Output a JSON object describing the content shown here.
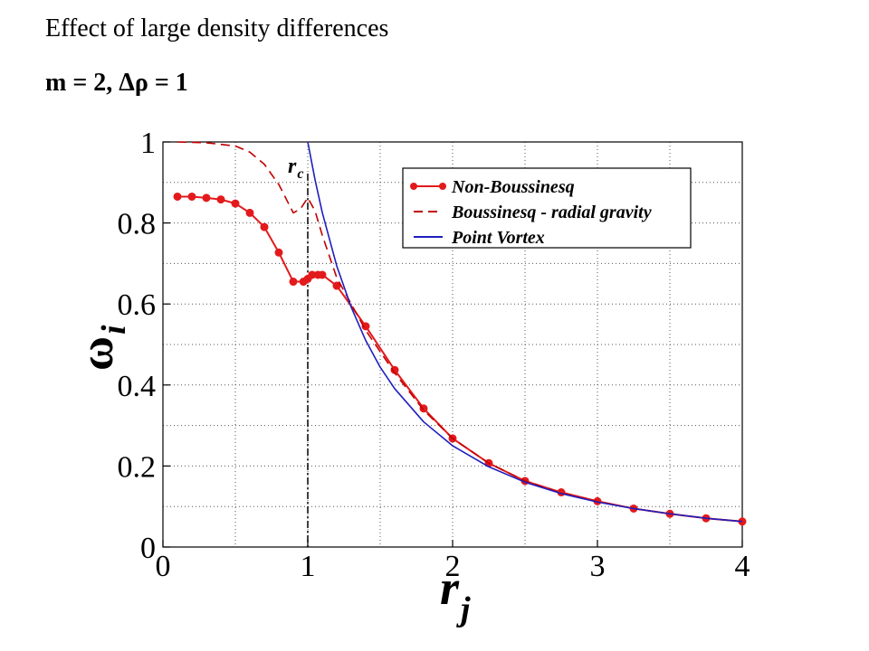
{
  "heading": "Effect of large density differences",
  "subheading": "m = 2, Δρ = 1",
  "chart_data": {
    "type": "line",
    "xlabel_main": "r",
    "xlabel_sub": "j",
    "ylabel_main": "ω",
    "ylabel_sub": "i",
    "xlim": [
      0,
      4
    ],
    "ylim": [
      0,
      1
    ],
    "xticks": [
      0,
      1,
      2,
      3,
      4
    ],
    "yticks": [
      0,
      0.2,
      0.4,
      0.6,
      0.8,
      1
    ],
    "xtick_labels": [
      "0",
      "1",
      "2",
      "3",
      "4"
    ],
    "ytick_labels": [
      "0",
      "0.2",
      "0.4",
      "0.6",
      "0.8",
      "1"
    ],
    "grid": true,
    "legend_position": "top-right",
    "annotation": {
      "text_main": "r",
      "text_sub": "c",
      "x": 1
    },
    "series": [
      {
        "name": "Non-Boussinesq",
        "color": "#e31a1c",
        "style": "solid-markers",
        "x": [
          0.1,
          0.2,
          0.3,
          0.4,
          0.5,
          0.6,
          0.7,
          0.8,
          0.9,
          0.97,
          1.0,
          1.03,
          1.07,
          1.1,
          1.2,
          1.4,
          1.6,
          1.8,
          2.0,
          2.25,
          2.5,
          2.75,
          3.0,
          3.25,
          3.5,
          3.75,
          4.0
        ],
        "y": [
          0.865,
          0.865,
          0.862,
          0.858,
          0.848,
          0.825,
          0.79,
          0.727,
          0.655,
          0.655,
          0.662,
          0.672,
          0.672,
          0.672,
          0.645,
          0.545,
          0.437,
          0.342,
          0.268,
          0.207,
          0.163,
          0.135,
          0.113,
          0.095,
          0.082,
          0.071,
          0.063
        ]
      },
      {
        "name": "Boussinesq - radial gravity",
        "color": "#c00000",
        "style": "dashed",
        "x": [
          0.1,
          0.3,
          0.5,
          0.6,
          0.7,
          0.8,
          0.9,
          0.95,
          1.0,
          1.05,
          1.1,
          1.2,
          1.4,
          1.6,
          1.8,
          2.0,
          2.25,
          2.5,
          2.75,
          3.0,
          3.25,
          3.5,
          3.75,
          4.0
        ],
        "y": [
          1.0,
          0.998,
          0.99,
          0.975,
          0.945,
          0.895,
          0.825,
          0.835,
          0.862,
          0.83,
          0.77,
          0.665,
          0.535,
          0.43,
          0.338,
          0.268,
          0.207,
          0.163,
          0.133,
          0.112,
          0.095,
          0.082,
          0.071,
          0.063
        ]
      },
      {
        "name": "Point Vortex",
        "color": "#1f1fbf",
        "style": "solid",
        "x": [
          1.0,
          1.05,
          1.1,
          1.2,
          1.3,
          1.4,
          1.5,
          1.6,
          1.8,
          2.0,
          2.25,
          2.5,
          2.75,
          3.0,
          3.25,
          3.5,
          3.75,
          4.0
        ],
        "y": [
          1.0,
          0.907,
          0.826,
          0.694,
          0.592,
          0.51,
          0.444,
          0.391,
          0.309,
          0.25,
          0.198,
          0.16,
          0.132,
          0.111,
          0.095,
          0.082,
          0.071,
          0.063
        ]
      }
    ]
  }
}
